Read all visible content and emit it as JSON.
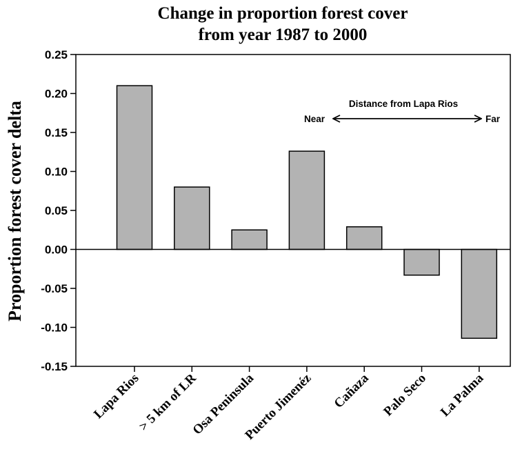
{
  "chart_data": {
    "type": "bar",
    "title_lines": [
      "Change in proportion forest cover",
      "from year 1987 to 2000"
    ],
    "xlabel": "",
    "ylabel": "Proportion forest cover delta",
    "categories": [
      "Lapa Rios",
      "> 5 km of LR",
      "Osa Peninsula",
      "Puerto Jimenéz",
      "Cañaza",
      "Palo Seco",
      "La Palma"
    ],
    "values": [
      0.21,
      0.08,
      0.025,
      0.126,
      0.029,
      -0.033,
      -0.114
    ],
    "ylim": [
      -0.15,
      0.25
    ],
    "yticks": [
      "-0.15",
      "-0.10",
      "-0.05",
      "0.00",
      "0.05",
      "0.10",
      "0.15",
      "0.20",
      "0.25"
    ],
    "grid": false,
    "bar_color": "#b3b3b3",
    "annotation": {
      "label": "Distance from Lapa Rios",
      "left": "Near",
      "right": "Far"
    }
  }
}
